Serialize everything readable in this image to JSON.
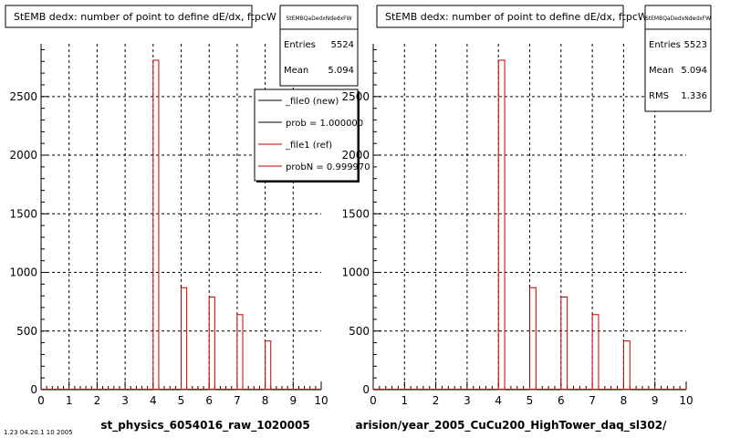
{
  "pads": [
    {
      "title": "StEMB dedx: number of point to define dE/dx, ftpcW",
      "stats": {
        "name": "StEMBQaDedxNdedxFW",
        "rows": [
          {
            "label": "Entries",
            "value": "5524"
          },
          {
            "label": "Mean",
            "value": "5.094"
          }
        ]
      },
      "legend": [
        {
          "label": "_file0 (new)",
          "color": "#000000"
        },
        {
          "label": "prob = 1.000000",
          "color": "#000000"
        },
        {
          "label": "_file1 (ref)",
          "color": "#cc0000"
        },
        {
          "label": "probN = 0.999970",
          "color": "#cc0000"
        }
      ],
      "xlabel": "st_physics_6054016_raw_1020005"
    },
    {
      "title": "StEMB dedx: number of point to define dE/dx, ftpcW",
      "stats": {
        "name": "StEMBQaDedxNdedxFW",
        "rows": [
          {
            "label": "Entries",
            "value": "5523"
          },
          {
            "label": "Mean",
            "value": "5.094"
          },
          {
            "label": "RMS",
            "value": "1.336"
          }
        ]
      },
      "legend": [],
      "xlabel": "arision/year_2005_CuCu200_HighTower_daq_sl302/"
    }
  ],
  "footer_text": "1.23 04.20.1 10 2005",
  "colors": {
    "ref": "#cc0000",
    "new": "#000000"
  },
  "chart_data": [
    {
      "type": "bar",
      "title": "StEMB dedx: number of point to define dE/dx, ftpcW",
      "xlim": [
        0,
        10
      ],
      "ylim": [
        0,
        2950
      ],
      "xticks": [
        0,
        1,
        2,
        3,
        4,
        5,
        6,
        7,
        8,
        9,
        10
      ],
      "yticks": [
        0,
        500,
        1000,
        1500,
        2000,
        2500
      ],
      "grid": true,
      "bin_width": 0.2,
      "series": [
        {
          "name": "_file1 (ref)",
          "color": "#cc0000",
          "bins": [
            [
              4.0,
              2810
            ],
            [
              5.0,
              870
            ],
            [
              6.0,
              790
            ],
            [
              7.0,
              640
            ],
            [
              8.0,
              415
            ]
          ]
        }
      ]
    },
    {
      "type": "bar",
      "title": "StEMB dedx: number of point to define dE/dx, ftpcW",
      "xlim": [
        0,
        10
      ],
      "ylim": [
        0,
        2950
      ],
      "xticks": [
        0,
        1,
        2,
        3,
        4,
        5,
        6,
        7,
        8,
        9,
        10
      ],
      "yticks": [
        0,
        500,
        1000,
        1500,
        2000,
        2500
      ],
      "grid": true,
      "bin_width": 0.2,
      "series": [
        {
          "color": "#cc0000",
          "bins": [
            [
              4.0,
              2810
            ],
            [
              5.0,
              870
            ],
            [
              6.0,
              790
            ],
            [
              7.0,
              640
            ],
            [
              8.0,
              415
            ]
          ]
        }
      ]
    }
  ]
}
